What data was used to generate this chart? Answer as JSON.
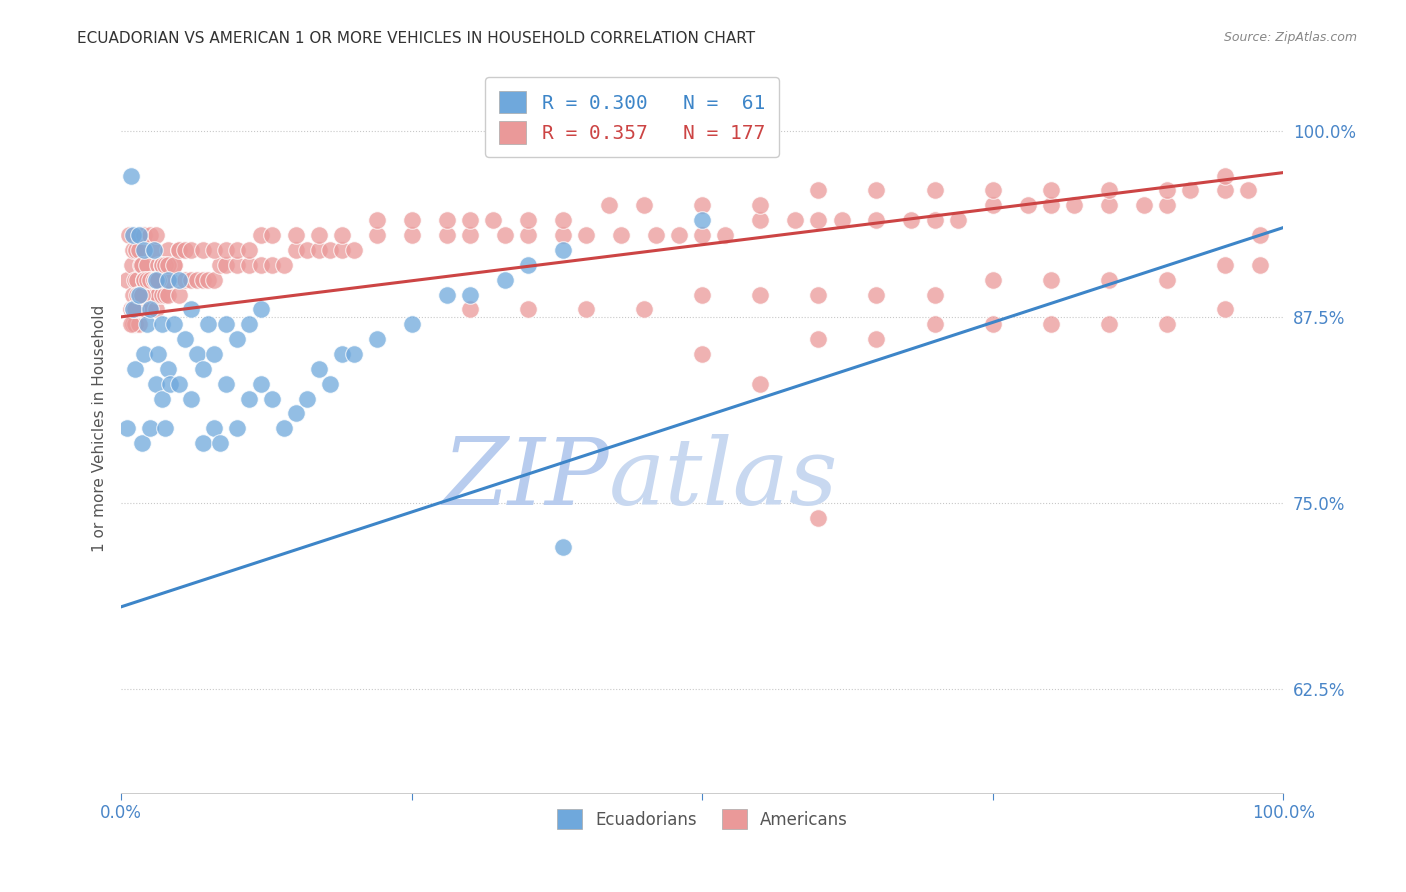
{
  "title": "ECUADORIAN VS AMERICAN 1 OR MORE VEHICLES IN HOUSEHOLD CORRELATION CHART",
  "source": "Source: ZipAtlas.com",
  "ylabel": "1 or more Vehicles in Household",
  "ytick_labels": [
    "62.5%",
    "75.0%",
    "87.5%",
    "100.0%"
  ],
  "ytick_values": [
    0.625,
    0.75,
    0.875,
    1.0
  ],
  "xlim": [
    0.0,
    1.0
  ],
  "ylim": [
    0.555,
    1.045
  ],
  "legend_blue_label": "Ecuadorians",
  "legend_pink_label": "Americans",
  "blue_color": "#6fa8dc",
  "pink_color": "#ea9999",
  "line_blue_color": "#3d85c8",
  "line_pink_color": "#cc4444",
  "watermark_zip_color": "#c9d8f0",
  "watermark_atlas_color": "#b8cce4",
  "background_color": "#ffffff",
  "blue_trend_x": [
    0.0,
    1.0
  ],
  "blue_trend_y_start": 0.68,
  "blue_trend_y_end": 0.935,
  "pink_trend_x": [
    0.0,
    1.0
  ],
  "pink_trend_y_start": 0.875,
  "pink_trend_y_end": 0.972,
  "blue_scatter_x": [
    0.005,
    0.008,
    0.01,
    0.01,
    0.012,
    0.015,
    0.015,
    0.018,
    0.02,
    0.02,
    0.022,
    0.025,
    0.025,
    0.028,
    0.03,
    0.03,
    0.032,
    0.035,
    0.035,
    0.038,
    0.04,
    0.04,
    0.042,
    0.045,
    0.05,
    0.05,
    0.055,
    0.06,
    0.06,
    0.065,
    0.07,
    0.07,
    0.075,
    0.08,
    0.08,
    0.085,
    0.09,
    0.09,
    0.1,
    0.1,
    0.11,
    0.11,
    0.12,
    0.12,
    0.13,
    0.14,
    0.15,
    0.16,
    0.17,
    0.18,
    0.19,
    0.2,
    0.22,
    0.25,
    0.28,
    0.3,
    0.33,
    0.35,
    0.38,
    0.5,
    0.38
  ],
  "blue_scatter_y": [
    0.8,
    0.97,
    0.93,
    0.88,
    0.84,
    0.89,
    0.93,
    0.79,
    0.85,
    0.92,
    0.87,
    0.8,
    0.88,
    0.92,
    0.83,
    0.9,
    0.85,
    0.82,
    0.87,
    0.8,
    0.84,
    0.9,
    0.83,
    0.87,
    0.83,
    0.9,
    0.86,
    0.82,
    0.88,
    0.85,
    0.79,
    0.84,
    0.87,
    0.8,
    0.85,
    0.79,
    0.83,
    0.87,
    0.8,
    0.86,
    0.82,
    0.87,
    0.83,
    0.88,
    0.82,
    0.8,
    0.81,
    0.82,
    0.84,
    0.83,
    0.85,
    0.85,
    0.86,
    0.87,
    0.89,
    0.89,
    0.9,
    0.91,
    0.92,
    0.94,
    0.72
  ],
  "pink_scatter_x": [
    0.005,
    0.007,
    0.008,
    0.009,
    0.01,
    0.01,
    0.01,
    0.012,
    0.012,
    0.013,
    0.013,
    0.014,
    0.015,
    0.015,
    0.015,
    0.016,
    0.017,
    0.018,
    0.018,
    0.02,
    0.02,
    0.02,
    0.022,
    0.022,
    0.025,
    0.025,
    0.025,
    0.028,
    0.028,
    0.03,
    0.03,
    0.03,
    0.032,
    0.032,
    0.035,
    0.035,
    0.038,
    0.04,
    0.04,
    0.042,
    0.045,
    0.05,
    0.05,
    0.055,
    0.06,
    0.065,
    0.07,
    0.075,
    0.08,
    0.085,
    0.09,
    0.1,
    0.11,
    0.12,
    0.13,
    0.14,
    0.15,
    0.16,
    0.17,
    0.18,
    0.19,
    0.2,
    0.22,
    0.25,
    0.28,
    0.3,
    0.33,
    0.35,
    0.38,
    0.4,
    0.43,
    0.46,
    0.48,
    0.5,
    0.52,
    0.55,
    0.58,
    0.6,
    0.62,
    0.65,
    0.68,
    0.7,
    0.72,
    0.75,
    0.78,
    0.8,
    0.82,
    0.85,
    0.88,
    0.9,
    0.92,
    0.95,
    0.97,
    0.98,
    0.008,
    0.01,
    0.012,
    0.014,
    0.016,
    0.018,
    0.02,
    0.022,
    0.025,
    0.028,
    0.03,
    0.032,
    0.035,
    0.038,
    0.04,
    0.045,
    0.05,
    0.055,
    0.06,
    0.07,
    0.08,
    0.09,
    0.1,
    0.11,
    0.12,
    0.13,
    0.15,
    0.17,
    0.19,
    0.22,
    0.25,
    0.28,
    0.3,
    0.32,
    0.35,
    0.38,
    0.42,
    0.45,
    0.5,
    0.55,
    0.6,
    0.65,
    0.7,
    0.75,
    0.8,
    0.85,
    0.9,
    0.95,
    0.6,
    0.65,
    0.7,
    0.75,
    0.8,
    0.85,
    0.9,
    0.95,
    0.3,
    0.35,
    0.4,
    0.45,
    0.5,
    0.55,
    0.6,
    0.65,
    0.7,
    0.75,
    0.8,
    0.85,
    0.9,
    0.95,
    0.98,
    0.5,
    0.55,
    0.6
  ],
  "pink_scatter_y": [
    0.9,
    0.93,
    0.88,
    0.91,
    0.87,
    0.89,
    0.92,
    0.87,
    0.9,
    0.92,
    0.88,
    0.9,
    0.87,
    0.89,
    0.92,
    0.88,
    0.91,
    0.88,
    0.91,
    0.88,
    0.9,
    0.93,
    0.89,
    0.91,
    0.88,
    0.9,
    0.93,
    0.89,
    0.92,
    0.88,
    0.9,
    0.93,
    0.89,
    0.91,
    0.89,
    0.91,
    0.89,
    0.89,
    0.92,
    0.9,
    0.91,
    0.89,
    0.92,
    0.9,
    0.9,
    0.9,
    0.9,
    0.9,
    0.9,
    0.91,
    0.91,
    0.91,
    0.91,
    0.91,
    0.91,
    0.91,
    0.92,
    0.92,
    0.92,
    0.92,
    0.92,
    0.92,
    0.93,
    0.93,
    0.93,
    0.93,
    0.93,
    0.93,
    0.93,
    0.93,
    0.93,
    0.93,
    0.93,
    0.93,
    0.93,
    0.94,
    0.94,
    0.94,
    0.94,
    0.94,
    0.94,
    0.94,
    0.94,
    0.95,
    0.95,
    0.95,
    0.95,
    0.95,
    0.95,
    0.95,
    0.96,
    0.96,
    0.96,
    0.93,
    0.87,
    0.88,
    0.88,
    0.89,
    0.89,
    0.89,
    0.9,
    0.9,
    0.9,
    0.9,
    0.9,
    0.9,
    0.91,
    0.91,
    0.91,
    0.91,
    0.92,
    0.92,
    0.92,
    0.92,
    0.92,
    0.92,
    0.92,
    0.92,
    0.93,
    0.93,
    0.93,
    0.93,
    0.93,
    0.94,
    0.94,
    0.94,
    0.94,
    0.94,
    0.94,
    0.94,
    0.95,
    0.95,
    0.95,
    0.95,
    0.96,
    0.96,
    0.96,
    0.96,
    0.96,
    0.96,
    0.96,
    0.97,
    0.86,
    0.86,
    0.87,
    0.87,
    0.87,
    0.87,
    0.87,
    0.88,
    0.88,
    0.88,
    0.88,
    0.88,
    0.89,
    0.89,
    0.89,
    0.89,
    0.89,
    0.9,
    0.9,
    0.9,
    0.9,
    0.91,
    0.91,
    0.85,
    0.83,
    0.74
  ]
}
